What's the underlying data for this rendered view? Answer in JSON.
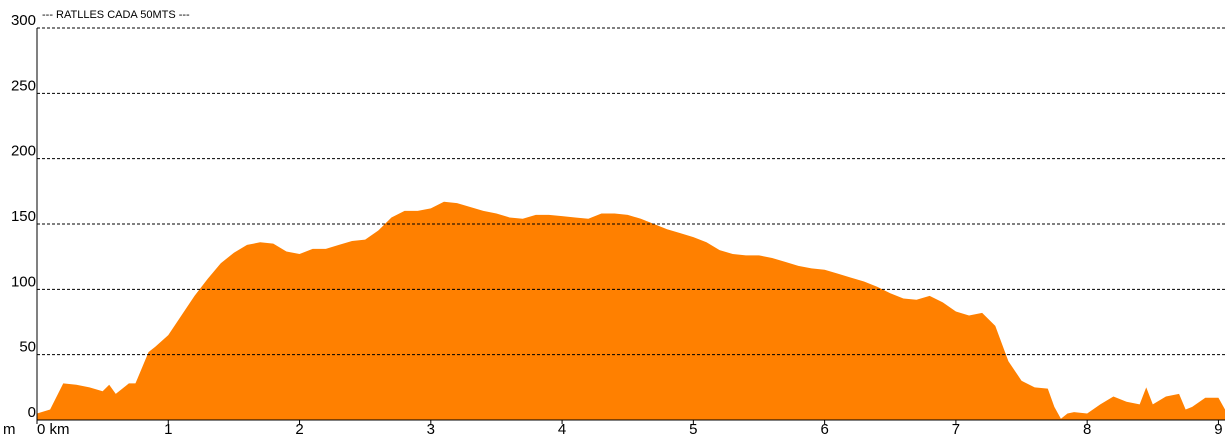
{
  "chart_data": {
    "type": "area",
    "title": "--- RATLLES CADA 50MTS ---",
    "y_unit": "m",
    "color": "#ff8000",
    "grid": true,
    "x": [
      0,
      0.1,
      0.2,
      0.3,
      0.4,
      0.5,
      0.55,
      0.6,
      0.7,
      0.75,
      0.8,
      0.85,
      0.9,
      1.0,
      1.1,
      1.2,
      1.3,
      1.4,
      1.5,
      1.6,
      1.7,
      1.8,
      1.9,
      2.0,
      2.1,
      2.2,
      2.3,
      2.4,
      2.5,
      2.6,
      2.7,
      2.8,
      2.9,
      3.0,
      3.1,
      3.2,
      3.3,
      3.4,
      3.5,
      3.6,
      3.7,
      3.8,
      3.9,
      4.0,
      4.1,
      4.2,
      4.3,
      4.4,
      4.5,
      4.6,
      4.7,
      4.8,
      4.9,
      5.0,
      5.1,
      5.2,
      5.3,
      5.4,
      5.5,
      5.6,
      5.7,
      5.8,
      5.9,
      6.0,
      6.1,
      6.2,
      6.3,
      6.4,
      6.5,
      6.6,
      6.7,
      6.8,
      6.9,
      7.0,
      7.1,
      7.2,
      7.3,
      7.4,
      7.5,
      7.6,
      7.7,
      7.75,
      7.8,
      7.85,
      7.9,
      8.0,
      8.1,
      8.2,
      8.3,
      8.4,
      8.45,
      8.5,
      8.6,
      8.7,
      8.75,
      8.8,
      8.9,
      9.0,
      9.05
    ],
    "values": [
      5,
      8,
      28,
      27,
      25,
      22,
      27,
      20,
      28,
      28,
      40,
      52,
      56,
      65,
      80,
      95,
      108,
      120,
      128,
      134,
      136,
      135,
      129,
      127,
      131,
      131,
      134,
      137,
      138,
      145,
      155,
      160,
      160,
      162,
      167,
      166,
      163,
      160,
      158,
      155,
      154,
      157,
      157,
      156,
      155,
      154,
      158,
      158,
      157,
      154,
      150,
      146,
      143,
      140,
      136,
      130,
      127,
      126,
      126,
      124,
      121,
      118,
      116,
      115,
      112,
      109,
      106,
      102,
      97,
      93,
      92,
      95,
      90,
      83,
      80,
      82,
      72,
      45,
      30,
      25,
      24,
      10,
      1,
      5,
      6,
      5,
      12,
      18,
      14,
      12,
      25,
      12,
      18,
      20,
      8,
      10,
      17,
      17,
      8
    ],
    "xlim": [
      0,
      9.05
    ],
    "xticks": [
      {
        "value": 0,
        "label": "0 km"
      },
      1,
      2,
      3,
      4,
      5,
      6,
      7,
      8,
      9
    ],
    "ylim": [
      0,
      300
    ],
    "yticks": [
      0,
      50,
      100,
      150,
      200,
      250,
      300
    ]
  }
}
